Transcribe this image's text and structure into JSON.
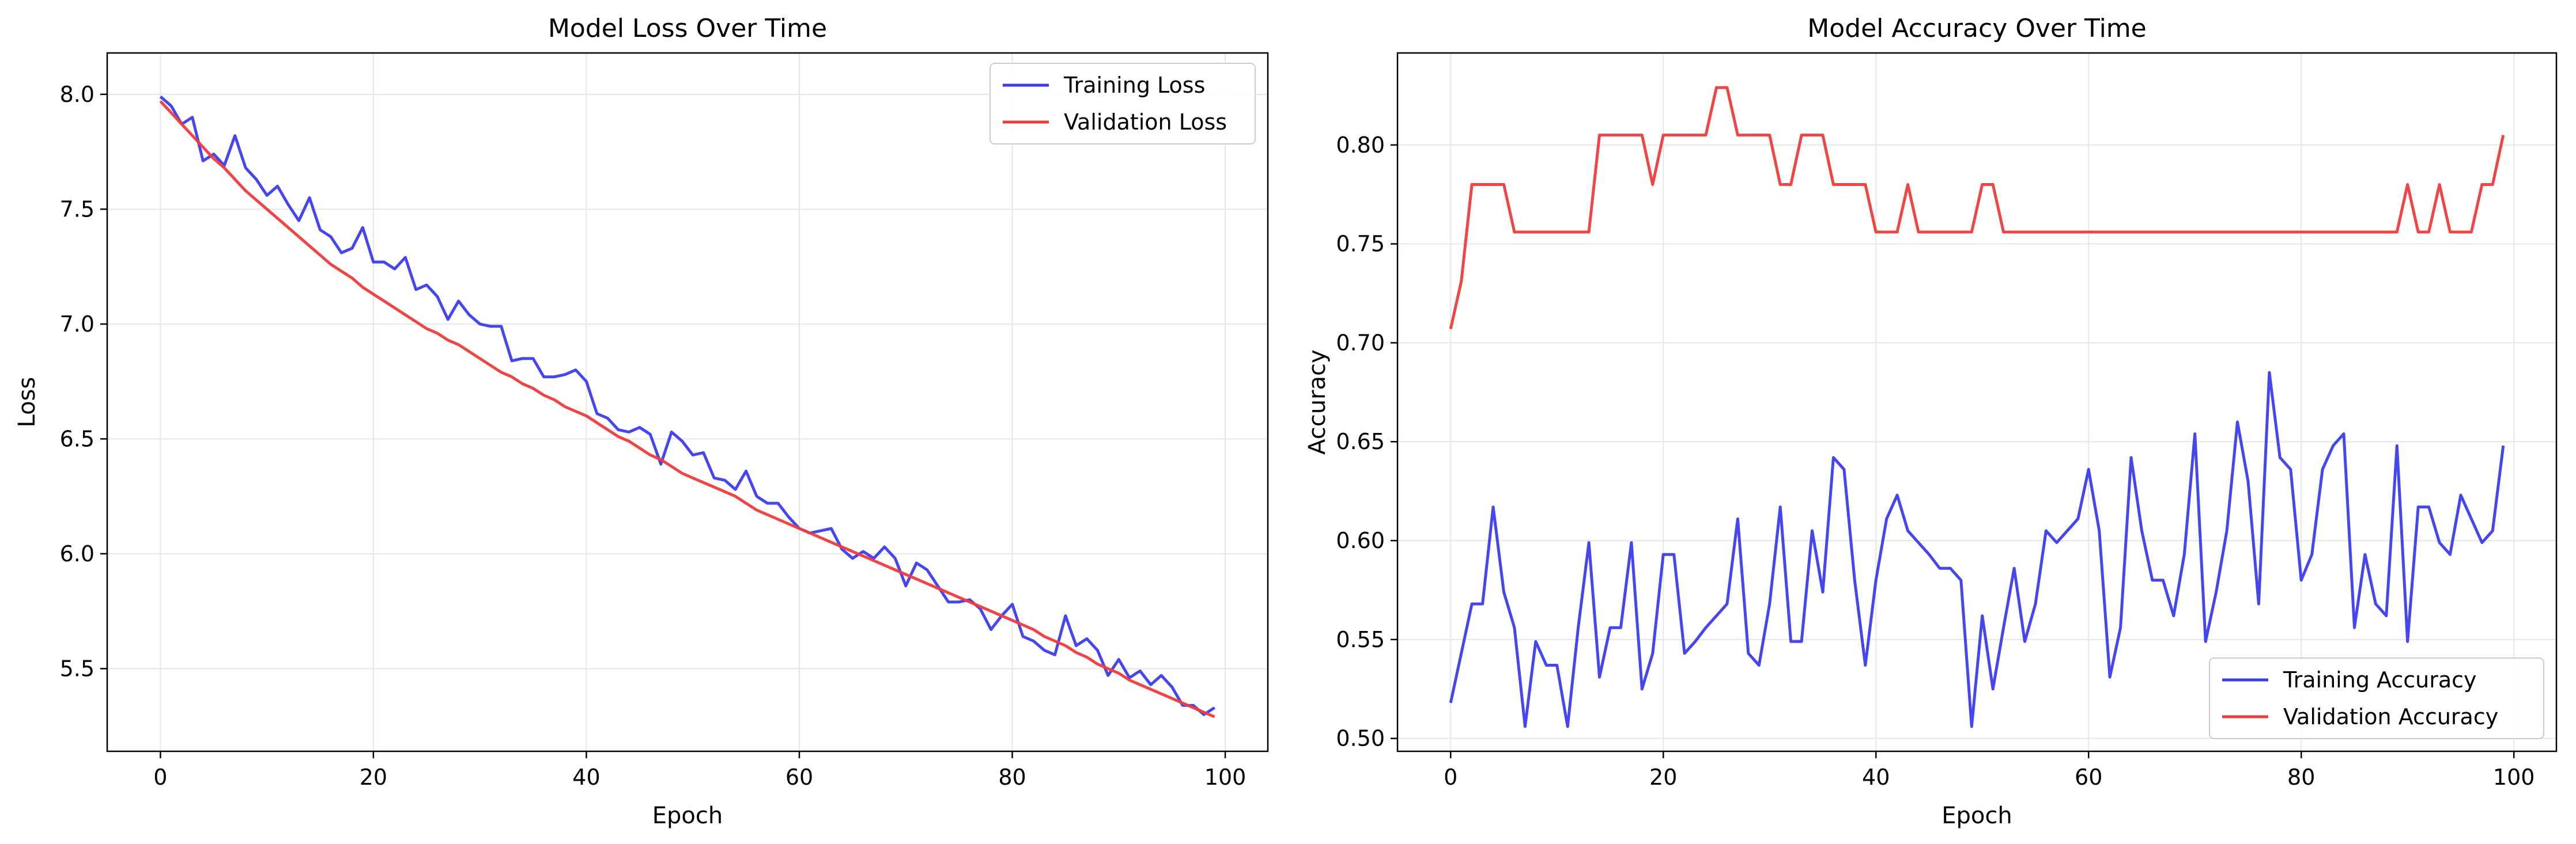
{
  "chart_data": [
    {
      "type": "line",
      "title": "Model Loss Over Time",
      "xlabel": "Epoch",
      "ylabel": "Loss",
      "xlim": [
        -5,
        104
      ],
      "ylim": [
        5.14,
        8.18
      ],
      "xticks": [
        0,
        20,
        40,
        60,
        80,
        100
      ],
      "yticks": [
        5.5,
        6.0,
        6.5,
        7.0,
        7.5,
        8.0
      ],
      "ytick_labels": [
        "5.5",
        "6.0",
        "6.5",
        "7.0",
        "7.5",
        "8.0"
      ],
      "grid": true,
      "legend": "top-right",
      "x": [
        0,
        1,
        2,
        3,
        4,
        5,
        6,
        7,
        8,
        9,
        10,
        11,
        12,
        13,
        14,
        15,
        16,
        17,
        18,
        19,
        20,
        21,
        22,
        23,
        24,
        25,
        26,
        27,
        28,
        29,
        30,
        31,
        32,
        33,
        34,
        35,
        36,
        37,
        38,
        39,
        40,
        41,
        42,
        43,
        44,
        45,
        46,
        47,
        48,
        49,
        50,
        51,
        52,
        53,
        54,
        55,
        56,
        57,
        58,
        59,
        60,
        61,
        62,
        63,
        64,
        65,
        66,
        67,
        68,
        69,
        70,
        71,
        72,
        73,
        74,
        75,
        76,
        77,
        78,
        79,
        80,
        81,
        82,
        83,
        84,
        85,
        86,
        87,
        88,
        89,
        90,
        91,
        92,
        93,
        94,
        95,
        96,
        97,
        98,
        99
      ],
      "series": [
        {
          "name": "Training Loss",
          "color": "#3b3bf0",
          "values": [
            7.99,
            7.95,
            7.87,
            7.9,
            7.71,
            7.74,
            7.69,
            7.82,
            7.68,
            7.63,
            7.56,
            7.6,
            7.52,
            7.45,
            7.55,
            7.41,
            7.38,
            7.31,
            7.33,
            7.42,
            7.27,
            7.27,
            7.24,
            7.29,
            7.15,
            7.17,
            7.12,
            7.02,
            7.1,
            7.04,
            7.0,
            6.99,
            6.99,
            6.84,
            6.85,
            6.85,
            6.77,
            6.77,
            6.78,
            6.8,
            6.75,
            6.61,
            6.59,
            6.54,
            6.53,
            6.55,
            6.52,
            6.39,
            6.53,
            6.49,
            6.43,
            6.44,
            6.33,
            6.32,
            6.28,
            6.36,
            6.25,
            6.22,
            6.22,
            6.16,
            6.11,
            6.09,
            6.1,
            6.11,
            6.02,
            5.98,
            6.01,
            5.98,
            6.03,
            5.98,
            5.86,
            5.96,
            5.93,
            5.86,
            5.79,
            5.79,
            5.8,
            5.76,
            5.67,
            5.73,
            5.78,
            5.64,
            5.62,
            5.58,
            5.56,
            5.73,
            5.6,
            5.63,
            5.58,
            5.47,
            5.54,
            5.46,
            5.49,
            5.43,
            5.47,
            5.42,
            5.34,
            5.34,
            5.3,
            5.33
          ]
        },
        {
          "name": "Validation Loss",
          "color": "#f03b3b",
          "values": [
            7.97,
            7.92,
            7.87,
            7.82,
            7.77,
            7.72,
            7.68,
            7.63,
            7.58,
            7.54,
            7.5,
            7.46,
            7.42,
            7.38,
            7.34,
            7.3,
            7.26,
            7.23,
            7.2,
            7.16,
            7.13,
            7.1,
            7.07,
            7.04,
            7.01,
            6.98,
            6.96,
            6.93,
            6.91,
            6.88,
            6.85,
            6.82,
            6.79,
            6.77,
            6.74,
            6.72,
            6.69,
            6.67,
            6.64,
            6.62,
            6.6,
            6.57,
            6.54,
            6.51,
            6.49,
            6.46,
            6.43,
            6.41,
            6.38,
            6.35,
            6.33,
            6.31,
            6.29,
            6.27,
            6.25,
            6.22,
            6.19,
            6.17,
            6.15,
            6.13,
            6.11,
            6.09,
            6.07,
            6.05,
            6.03,
            6.01,
            5.99,
            5.97,
            5.95,
            5.93,
            5.91,
            5.89,
            5.87,
            5.85,
            5.83,
            5.81,
            5.79,
            5.77,
            5.75,
            5.73,
            5.71,
            5.69,
            5.67,
            5.64,
            5.62,
            5.6,
            5.57,
            5.55,
            5.52,
            5.5,
            5.48,
            5.45,
            5.43,
            5.41,
            5.39,
            5.37,
            5.35,
            5.33,
            5.31,
            5.29
          ]
        }
      ]
    },
    {
      "type": "line",
      "title": "Model Accuracy Over Time",
      "xlabel": "Epoch",
      "ylabel": "Accuracy",
      "xlim": [
        -5,
        104
      ],
      "ylim": [
        0.4935,
        0.8465
      ],
      "xticks": [
        0,
        20,
        40,
        60,
        80,
        100
      ],
      "yticks": [
        0.5,
        0.55,
        0.6,
        0.65,
        0.7,
        0.75,
        0.8
      ],
      "ytick_labels": [
        "0.50",
        "0.55",
        "0.60",
        "0.65",
        "0.70",
        "0.75",
        "0.80"
      ],
      "grid": true,
      "legend": "bottom-right",
      "x": [
        0,
        1,
        2,
        3,
        4,
        5,
        6,
        7,
        8,
        9,
        10,
        11,
        12,
        13,
        14,
        15,
        16,
        17,
        18,
        19,
        20,
        21,
        22,
        23,
        24,
        25,
        26,
        27,
        28,
        29,
        30,
        31,
        32,
        33,
        34,
        35,
        36,
        37,
        38,
        39,
        40,
        41,
        42,
        43,
        44,
        45,
        46,
        47,
        48,
        49,
        50,
        51,
        52,
        53,
        54,
        55,
        56,
        57,
        58,
        59,
        60,
        61,
        62,
        63,
        64,
        65,
        66,
        67,
        68,
        69,
        70,
        71,
        72,
        73,
        74,
        75,
        76,
        77,
        78,
        79,
        80,
        81,
        82,
        83,
        84,
        85,
        86,
        87,
        88,
        89,
        90,
        91,
        92,
        93,
        94,
        95,
        96,
        97,
        98,
        99
      ],
      "series": [
        {
          "name": "Training Accuracy",
          "color": "#3b3bf0",
          "values": [
            0.518,
            0.543,
            0.568,
            0.568,
            0.617,
            0.574,
            0.556,
            0.506,
            0.549,
            0.537,
            0.537,
            0.506,
            0.556,
            0.599,
            0.531,
            0.556,
            0.556,
            0.599,
            0.525,
            0.543,
            0.593,
            0.593,
            0.543,
            0.549,
            0.556,
            0.562,
            0.568,
            0.611,
            0.543,
            0.537,
            0.568,
            0.617,
            0.549,
            0.549,
            0.605,
            0.574,
            0.642,
            0.636,
            0.58,
            0.537,
            0.58,
            0.611,
            0.623,
            0.605,
            0.599,
            0.593,
            0.586,
            0.586,
            0.58,
            0.506,
            0.562,
            0.525,
            0.556,
            0.586,
            0.549,
            0.568,
            0.605,
            0.599,
            0.605,
            0.611,
            0.636,
            0.605,
            0.531,
            0.556,
            0.642,
            0.605,
            0.58,
            0.58,
            0.562,
            0.593,
            0.654,
            0.549,
            0.574,
            0.605,
            0.66,
            0.63,
            0.568,
            0.685,
            0.642,
            0.636,
            0.58,
            0.593,
            0.636,
            0.648,
            0.654,
            0.556,
            0.593,
            0.568,
            0.562,
            0.648,
            0.549,
            0.617,
            0.617,
            0.599,
            0.593,
            0.623,
            0.611,
            0.599,
            0.605,
            0.648
          ]
        },
        {
          "name": "Validation Accuracy",
          "color": "#f03b3b",
          "values": [
            0.707,
            0.731,
            0.78,
            0.78,
            0.78,
            0.78,
            0.756,
            0.756,
            0.756,
            0.756,
            0.756,
            0.756,
            0.756,
            0.756,
            0.805,
            0.805,
            0.805,
            0.805,
            0.805,
            0.78,
            0.805,
            0.805,
            0.805,
            0.805,
            0.805,
            0.829,
            0.829,
            0.805,
            0.805,
            0.805,
            0.805,
            0.78,
            0.78,
            0.805,
            0.805,
            0.805,
            0.78,
            0.78,
            0.78,
            0.78,
            0.756,
            0.756,
            0.756,
            0.78,
            0.756,
            0.756,
            0.756,
            0.756,
            0.756,
            0.756,
            0.78,
            0.78,
            0.756,
            0.756,
            0.756,
            0.756,
            0.756,
            0.756,
            0.756,
            0.756,
            0.756,
            0.756,
            0.756,
            0.756,
            0.756,
            0.756,
            0.756,
            0.756,
            0.756,
            0.756,
            0.756,
            0.756,
            0.756,
            0.756,
            0.756,
            0.756,
            0.756,
            0.756,
            0.756,
            0.756,
            0.756,
            0.756,
            0.756,
            0.756,
            0.756,
            0.756,
            0.756,
            0.756,
            0.756,
            0.756,
            0.78,
            0.756,
            0.756,
            0.78,
            0.756,
            0.756,
            0.756,
            0.78,
            0.78,
            0.805
          ]
        }
      ]
    }
  ]
}
